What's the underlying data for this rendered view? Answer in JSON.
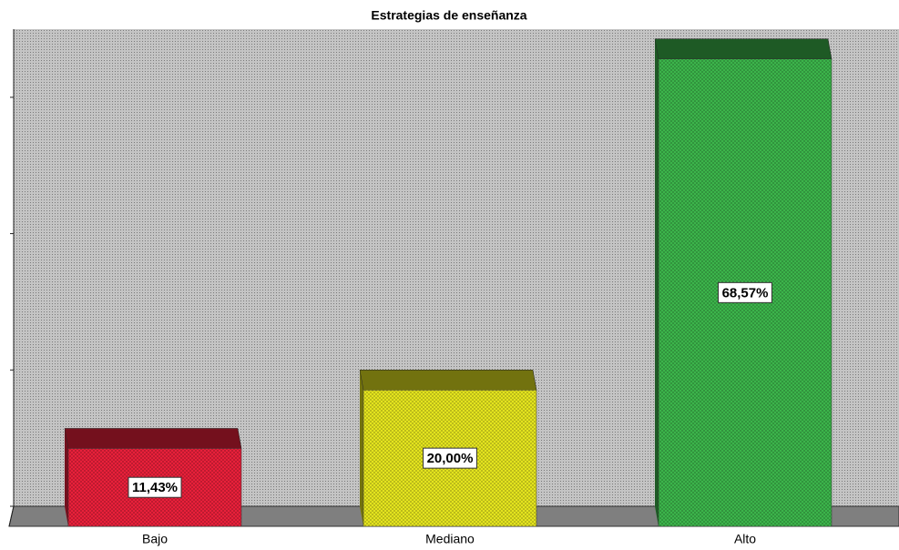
{
  "chart_data": {
    "type": "bar3d",
    "title": "Estrategias de enseñanza",
    "categories": [
      "Bajo",
      "Mediano",
      "Alto"
    ],
    "values": [
      11.43,
      20.0,
      68.57
    ],
    "value_labels": [
      "11,43%",
      "20,00%",
      "68,57%"
    ],
    "colors": [
      "#e8203a",
      "#e4e41e",
      "#3cb44b"
    ],
    "ylim": [
      0,
      70
    ],
    "yticks": [
      0,
      20,
      40,
      60
    ]
  }
}
